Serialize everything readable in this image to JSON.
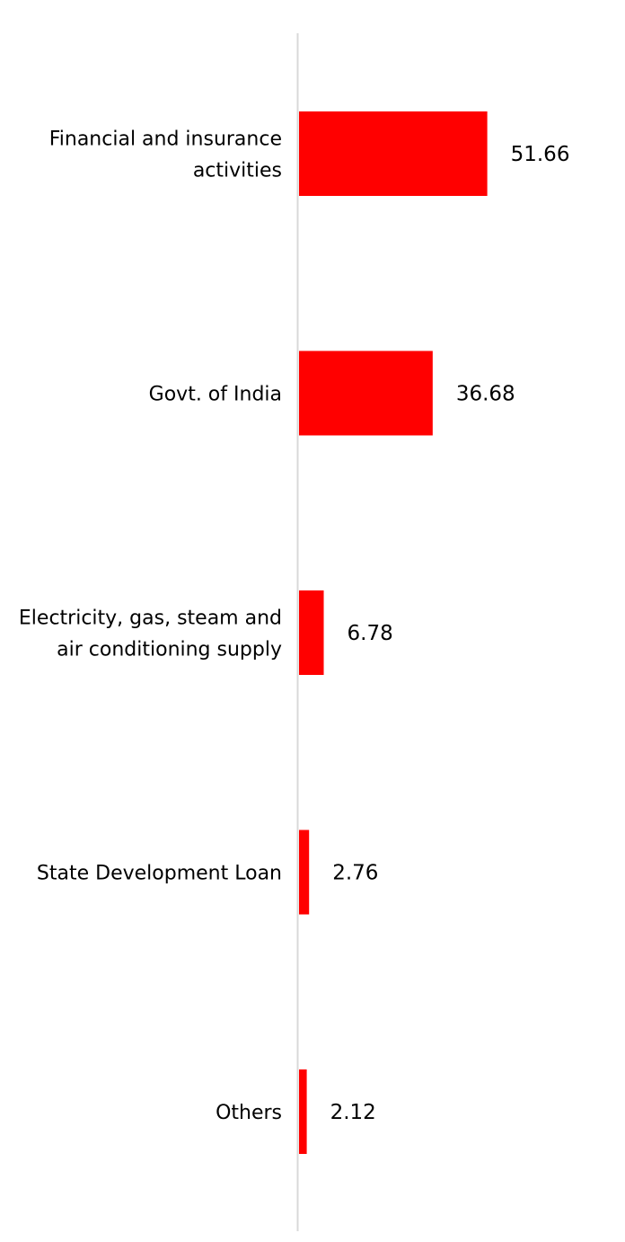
{
  "chart_data": {
    "type": "bar",
    "orientation": "horizontal",
    "title": "",
    "xlabel": "",
    "ylabel": "",
    "categories": [
      [
        "Financial and insurance",
        "activities"
      ],
      [
        "Govt. of India"
      ],
      [
        "Electricity, gas, steam and",
        "air conditioning supply"
      ],
      [
        "State Development Loan"
      ],
      [
        "Others"
      ]
    ],
    "values": [
      51.66,
      36.68,
      6.78,
      2.76,
      2.12
    ],
    "value_labels": [
      "51.66",
      "36.68",
      "6.78",
      "2.76",
      "2.12"
    ],
    "xlim": [
      0,
      52
    ],
    "grid": false,
    "legend": "none",
    "colors": {
      "bar": "#ff0000",
      "axis": "#d9d9d9",
      "text": "#000000"
    }
  }
}
